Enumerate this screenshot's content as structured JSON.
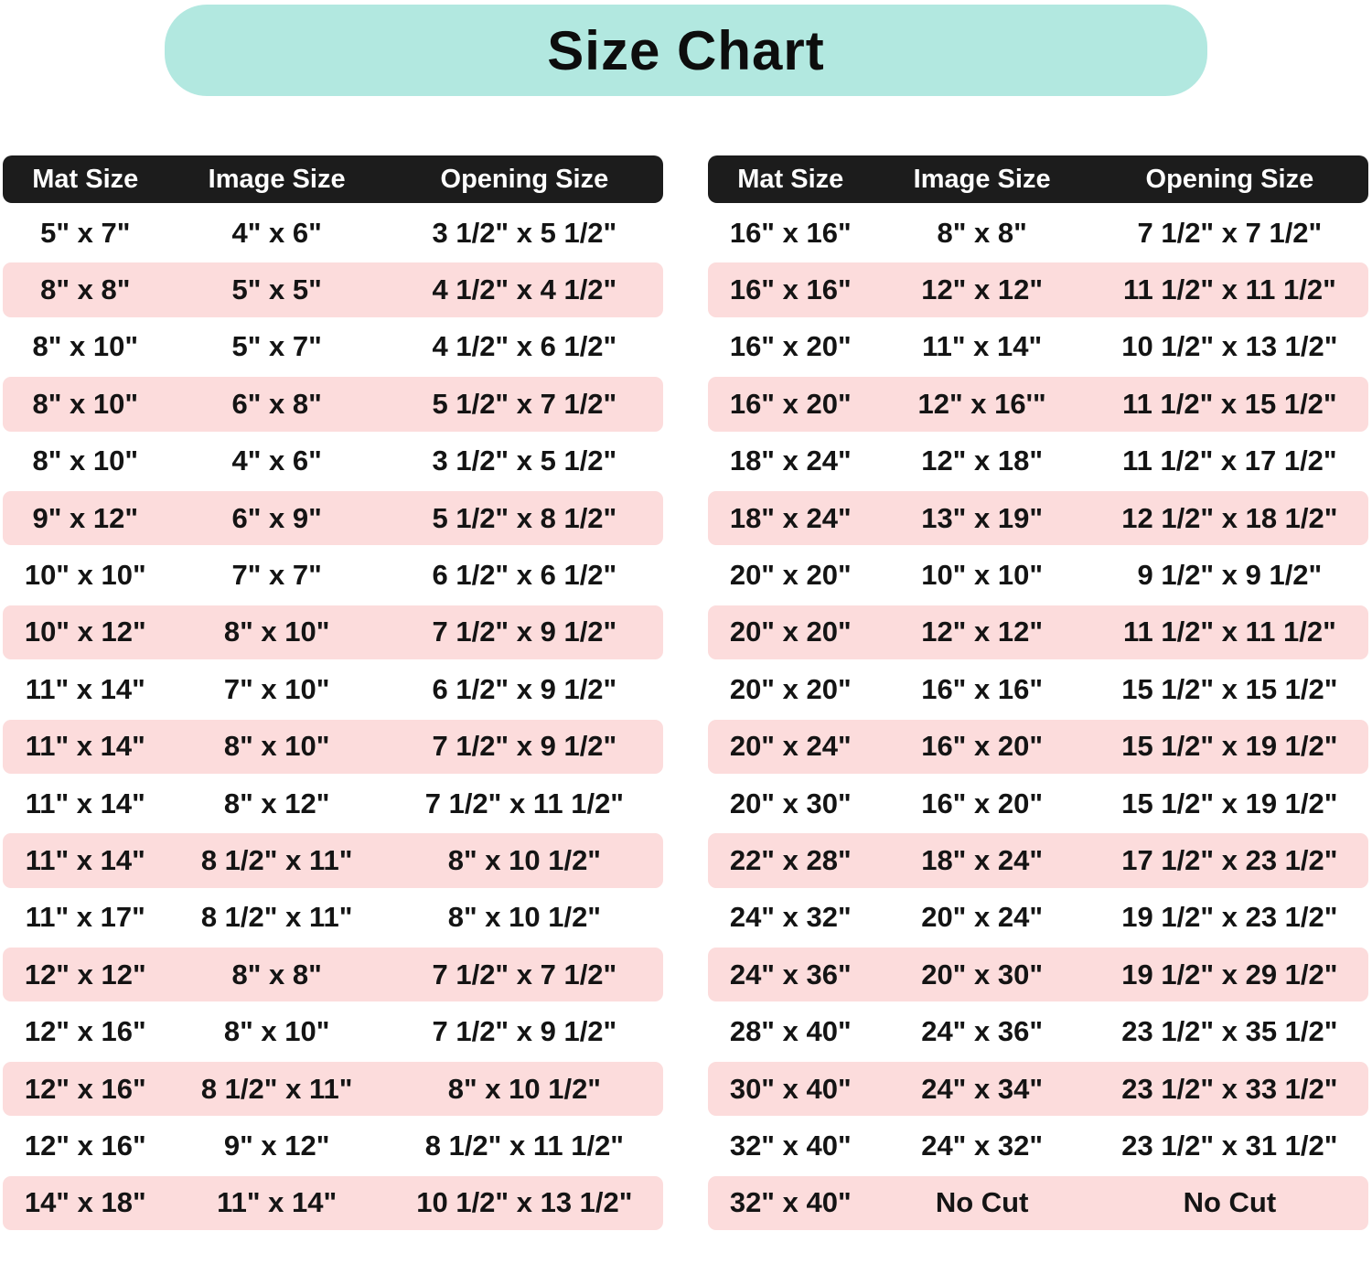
{
  "title": "Size Chart",
  "colors": {
    "banner_bg": "#b2e8e0",
    "header_bg": "#1c1c1c",
    "header_text": "#ffffff",
    "alt_row_bg": "#fcdcdc",
    "text": "#141414",
    "page_bg": "#ffffff"
  },
  "chart_data": [
    {
      "type": "table",
      "name": "left-size-table",
      "columns": [
        "Mat Size",
        "Image Size",
        "Opening Size"
      ],
      "rows": [
        [
          "5\" x 7\"",
          "4\" x 6\"",
          "3 1/2\" x 5 1/2\""
        ],
        [
          "8\" x 8\"",
          "5\" x 5\"",
          "4 1/2\" x 4 1/2\""
        ],
        [
          "8\" x 10\"",
          "5\" x 7\"",
          "4 1/2\" x 6 1/2\""
        ],
        [
          "8\" x 10\"",
          "6\" x 8\"",
          "5 1/2\" x 7 1/2\""
        ],
        [
          "8\" x 10\"",
          "4\" x 6\"",
          "3 1/2\" x 5 1/2\""
        ],
        [
          "9\" x 12\"",
          "6\" x 9\"",
          "5 1/2\" x 8 1/2\""
        ],
        [
          "10\" x 10\"",
          "7\" x 7\"",
          "6 1/2\" x 6 1/2\""
        ],
        [
          "10\" x 12\"",
          "8\" x 10\"",
          "7 1/2\" x 9 1/2\""
        ],
        [
          "11\" x 14\"",
          "7\" x 10\"",
          "6 1/2\" x 9 1/2\""
        ],
        [
          "11\" x 14\"",
          "8\" x 10\"",
          "7 1/2\" x 9 1/2\""
        ],
        [
          "11\" x 14\"",
          "8\" x 12\"",
          "7 1/2\" x 11 1/2\""
        ],
        [
          "11\" x 14\"",
          "8 1/2\" x 11\"",
          "8\" x 10 1/2\""
        ],
        [
          "11\" x 17\"",
          "8 1/2\" x 11\"",
          "8\" x 10 1/2\""
        ],
        [
          "12\" x 12\"",
          "8\" x 8\"",
          "7 1/2\" x 7 1/2\""
        ],
        [
          "12\" x 16\"",
          "8\" x 10\"",
          "7 1/2\" x 9 1/2\""
        ],
        [
          "12\" x 16\"",
          "8 1/2\" x 11\"",
          "8\" x 10 1/2\""
        ],
        [
          "12\" x 16\"",
          "9\" x 12\"",
          "8 1/2\" x 11 1/2\""
        ],
        [
          "14\" x 18\"",
          "11\" x 14\"",
          "10 1/2\" x 13 1/2\""
        ]
      ]
    },
    {
      "type": "table",
      "name": "right-size-table",
      "columns": [
        "Mat Size",
        "Image Size",
        "Opening Size"
      ],
      "rows": [
        [
          "16\" x 16\"",
          "8\" x 8\"",
          "7 1/2\" x 7 1/2\""
        ],
        [
          "16\" x 16\"",
          "12\" x 12\"",
          "11 1/2\" x 11 1/2\""
        ],
        [
          "16\" x 20\"",
          "11\" x 14\"",
          "10 1/2\" x 13 1/2\""
        ],
        [
          "16\" x 20\"",
          "12\" x 16'\"",
          "11 1/2\" x 15 1/2\""
        ],
        [
          "18\" x 24\"",
          "12\" x 18\"",
          "11 1/2\" x 17 1/2\""
        ],
        [
          "18\" x 24\"",
          "13\" x 19\"",
          "12 1/2\" x 18 1/2\""
        ],
        [
          "20\" x 20\"",
          "10\" x 10\"",
          "9 1/2\" x 9 1/2\""
        ],
        [
          "20\" x 20\"",
          "12\" x 12\"",
          "11 1/2\" x 11 1/2\""
        ],
        [
          "20\" x 20\"",
          "16\" x 16\"",
          "15 1/2\" x 15 1/2\""
        ],
        [
          "20\" x 24\"",
          "16\" x 20\"",
          "15 1/2\" x 19 1/2\""
        ],
        [
          "20\" x 30\"",
          "16\" x 20\"",
          "15 1/2\" x 19 1/2\""
        ],
        [
          "22\" x 28\"",
          "18\" x 24\"",
          "17 1/2\" x 23 1/2\""
        ],
        [
          "24\" x 32\"",
          "20\" x 24\"",
          "19 1/2\" x 23 1/2\""
        ],
        [
          "24\" x 36\"",
          "20\" x 30\"",
          "19 1/2\" x 29 1/2\""
        ],
        [
          "28\" x 40\"",
          "24\" x 36\"",
          "23 1/2\" x 35 1/2\""
        ],
        [
          "30\" x 40\"",
          "24\" x 34\"",
          "23 1/2\" x 33 1/2\""
        ],
        [
          "32\" x 40\"",
          "24\" x 32\"",
          "23 1/2\" x 31 1/2\""
        ],
        [
          "32\" x 40\"",
          "No Cut",
          "No Cut"
        ]
      ]
    }
  ]
}
